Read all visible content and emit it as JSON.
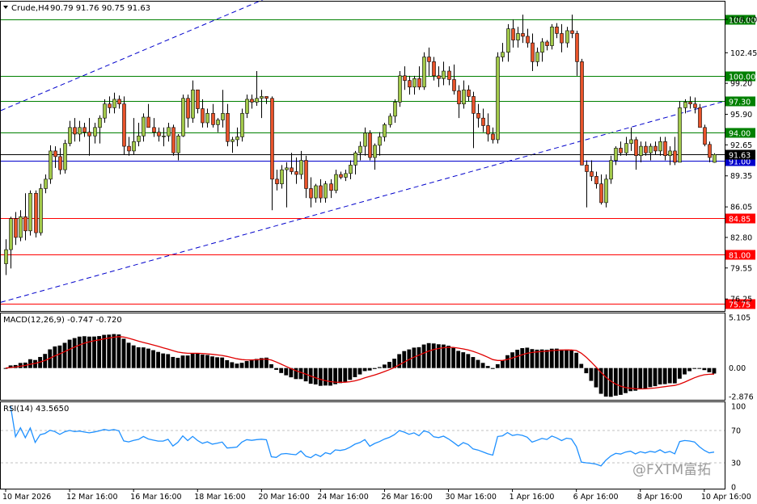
{
  "header": {
    "symbol_label": "Crude,H4",
    "ohlc_label": "90.79 91.76 90.75 91.63"
  },
  "macd_label": "MACD(12,26,9) -0.747 -0.720",
  "rsi_label": "RSI(14) 43.5650",
  "watermark": "@FXTM富拓",
  "chart_data": [
    {
      "type": "candlestick",
      "title": "Crude,H4",
      "ohlc_last": {
        "open": 90.79,
        "high": 91.76,
        "low": 90.75,
        "close": 91.63
      },
      "ylim": [
        75.75,
        108.0
      ],
      "y_tick_labels": [
        "106.00",
        "102.45",
        "99.20",
        "95.90",
        "92.65",
        "89.35",
        "86.05",
        "82.80",
        "79.55",
        "76.25"
      ],
      "x_tick_labels": [
        "10 Mar 2026",
        "12 Mar 16:00",
        "16 Mar 16:00",
        "18 Mar 16:00",
        "20 Mar 16:00",
        "24 Mar 16:00",
        "26 Mar 16:00",
        "30 Mar 16:00",
        "1 Apr 16:00",
        "6 Apr 16:00",
        "8 Apr 16:00",
        "10 Apr 16:00"
      ],
      "horizontal_levels": [
        {
          "value": 106.0,
          "label": "106.00",
          "color": "#008000"
        },
        {
          "value": 100.0,
          "label": "100.00",
          "color": "#008000"
        },
        {
          "value": 97.3,
          "label": "97.30",
          "color": "#008000"
        },
        {
          "value": 94.0,
          "label": "94.00",
          "color": "#008000"
        },
        {
          "value": 91.0,
          "label": "91.00",
          "color": "#0000cc"
        },
        {
          "value": 84.85,
          "label": "84.85",
          "color": "#ff0000"
        },
        {
          "value": 81.0,
          "label": "81.00",
          "color": "#ff0000"
        },
        {
          "value": 75.75,
          "label": "75.75",
          "color": "#ff0000"
        }
      ],
      "last_price_label": "91.63",
      "trend_channel": {
        "upper": [
          [
            "10 Mar 2026",
            96.3
          ],
          [
            "17 Mar 06:00",
            113.0
          ]
        ],
        "lower": [
          [
            "10 Mar 2026",
            75.9
          ],
          [
            "10 Apr 23:00",
            97.3
          ]
        ],
        "style": "dashed",
        "color": "#0000cc"
      },
      "candles": [
        [
          80,
          82.6,
          78.8,
          81.5
        ],
        [
          81.5,
          85,
          79.5,
          84.8
        ],
        [
          84.8,
          85.5,
          82,
          82.8
        ],
        [
          82.8,
          85.7,
          82.4,
          85
        ],
        [
          85,
          87.5,
          82.5,
          83.5
        ],
        [
          83.5,
          87.8,
          83,
          87.5
        ],
        [
          87.5,
          87.8,
          82.8,
          83.3
        ],
        [
          83.3,
          88.5,
          83,
          88
        ],
        [
          88,
          89.5,
          87.5,
          89
        ],
        [
          89,
          92.6,
          88.5,
          92
        ],
        [
          92,
          92.5,
          90.2,
          91.4
        ],
        [
          91.4,
          92.3,
          89.5,
          90
        ],
        [
          90,
          93.2,
          89.6,
          92.8
        ],
        [
          92.8,
          95.2,
          92.5,
          94.5
        ],
        [
          94.5,
          95.5,
          93,
          93.8
        ],
        [
          93.8,
          95.2,
          93,
          94.5
        ],
        [
          94.5,
          95,
          93.5,
          94
        ],
        [
          94,
          95.5,
          91.5,
          93.6
        ],
        [
          93.6,
          95,
          92.8,
          94.5
        ],
        [
          94.5,
          95.8,
          92.8,
          95.5
        ],
        [
          95.5,
          97.5,
          95,
          97
        ],
        [
          97,
          97.8,
          96,
          96.6
        ],
        [
          96.6,
          98.2,
          96,
          97.5
        ],
        [
          97.5,
          97.9,
          96.5,
          97
        ],
        [
          97,
          97.8,
          91.6,
          92.5
        ],
        [
          92.5,
          93.5,
          91.5,
          92
        ],
        [
          92,
          95.5,
          91.6,
          93
        ],
        [
          93,
          95,
          92.5,
          93.6
        ],
        [
          93.6,
          96,
          93,
          95.6
        ],
        [
          95.6,
          97,
          94.5,
          94.5
        ],
        [
          94.5,
          95.5,
          93.5,
          94
        ],
        [
          94,
          94.5,
          93,
          93.6
        ],
        [
          93.6,
          94.5,
          92.5,
          93.6
        ],
        [
          93.6,
          95,
          93,
          94.5
        ],
        [
          94.5,
          94.8,
          91.5,
          91.8
        ],
        [
          91.8,
          93.8,
          91,
          93.6
        ],
        [
          93.6,
          98,
          93.5,
          97.6
        ],
        [
          97.6,
          98,
          94.5,
          95.5
        ],
        [
          95.5,
          99.5,
          95,
          98.5
        ],
        [
          98.5,
          98.5,
          96,
          96.5
        ],
        [
          96.5,
          97.5,
          94.5,
          95
        ],
        [
          95,
          96.5,
          94.5,
          96
        ],
        [
          96,
          97,
          94.5,
          94.8
        ],
        [
          94.8,
          95.5,
          94,
          95.3
        ],
        [
          95.3,
          98.5,
          94.5,
          96
        ],
        [
          96,
          97,
          92.5,
          93
        ],
        [
          93,
          93.5,
          91.8,
          93.2
        ],
        [
          93.2,
          94.5,
          92.5,
          93.5
        ],
        [
          93.5,
          96.5,
          93,
          96
        ],
        [
          96,
          98,
          95.5,
          97.5
        ],
        [
          97.5,
          98,
          96.5,
          97.2
        ],
        [
          97.2,
          100.5,
          96.8,
          97.6
        ],
        [
          97.6,
          98.5,
          95.5,
          97.8
        ],
        [
          97.8,
          97.8,
          97,
          97.6
        ],
        [
          97.6,
          97.8,
          85.7,
          89
        ],
        [
          89,
          90,
          87.8,
          88.5
        ],
        [
          88.5,
          90.5,
          88,
          90
        ],
        [
          90,
          90.8,
          86,
          90.2
        ],
        [
          90.2,
          91.8,
          89.5,
          89.8
        ],
        [
          89.8,
          91.3,
          88.5,
          89.5
        ],
        [
          89.5,
          92,
          89,
          91
        ],
        [
          91,
          91.5,
          87,
          88
        ],
        [
          88,
          89.2,
          86,
          87
        ],
        [
          87,
          88.5,
          86.5,
          88.3
        ],
        [
          88.3,
          89,
          86.5,
          87
        ],
        [
          87,
          88.8,
          86.5,
          88.5
        ],
        [
          88.5,
          89,
          87,
          87.8
        ],
        [
          87.8,
          90,
          87.5,
          89.5
        ],
        [
          89.5,
          89.8,
          89,
          89.2
        ],
        [
          89.2,
          90,
          88.8,
          89.6
        ],
        [
          89.6,
          91,
          89,
          90.5
        ],
        [
          90.5,
          92,
          89.5,
          91.8
        ],
        [
          91.8,
          93,
          91,
          92.5
        ],
        [
          92.5,
          94.5,
          91.5,
          93.9
        ],
        [
          93.9,
          94.2,
          91,
          91.3
        ],
        [
          91.3,
          92.8,
          90,
          92.6
        ],
        [
          92.6,
          94,
          91.5,
          93.5
        ],
        [
          93.5,
          95,
          93,
          94.8
        ],
        [
          94.8,
          96,
          94.5,
          95.7
        ],
        [
          95.7,
          97.5,
          95,
          97.2
        ],
        [
          97.2,
          100.5,
          96.7,
          100
        ],
        [
          100,
          101,
          98.5,
          99.5
        ],
        [
          99.5,
          100,
          98,
          98.8
        ],
        [
          98.8,
          100,
          98,
          99.7
        ],
        [
          99.7,
          101,
          98.5,
          98.8
        ],
        [
          98.8,
          102.5,
          98.5,
          102
        ],
        [
          102,
          103,
          100,
          101.5
        ],
        [
          101.5,
          102,
          99.5,
          100
        ],
        [
          100,
          101,
          98.8,
          99.7
        ],
        [
          99.7,
          101.5,
          99,
          100.5
        ],
        [
          100.5,
          101,
          99,
          99.6
        ],
        [
          99.6,
          101.2,
          98,
          98.4
        ],
        [
          98.4,
          99,
          95.5,
          97
        ],
        [
          97,
          99.5,
          96.5,
          98.5
        ],
        [
          98.5,
          99,
          97.3,
          97.8
        ],
        [
          97.8,
          98.3,
          92.3,
          96
        ],
        [
          96,
          97,
          94.5,
          95.5
        ],
        [
          95.5,
          96.5,
          94,
          94.7
        ],
        [
          94.7,
          96,
          93,
          93.8
        ],
        [
          93.8,
          94.5,
          92.8,
          93.2
        ],
        [
          93.2,
          102.5,
          92.8,
          102
        ],
        [
          102,
          103.5,
          101.5,
          102.5
        ],
        [
          102.5,
          105.5,
          101.5,
          105
        ],
        [
          105,
          106,
          103,
          103.8
        ],
        [
          103.8,
          105.2,
          103,
          104.5
        ],
        [
          104.5,
          106.5,
          103.5,
          104.2
        ],
        [
          104.2,
          105,
          103,
          103.5
        ],
        [
          103.5,
          104.5,
          100.5,
          101.5
        ],
        [
          101.5,
          103,
          101,
          102.5
        ],
        [
          102.5,
          104,
          101.5,
          103.6
        ],
        [
          103.6,
          103.8,
          102.7,
          103.2
        ],
        [
          103.2,
          105.5,
          102.8,
          105.2
        ],
        [
          105.2,
          105.6,
          104,
          104.5
        ],
        [
          104.5,
          105.5,
          102.5,
          103.5
        ],
        [
          103.5,
          105.2,
          103,
          104.8
        ],
        [
          104.8,
          106.5,
          104,
          104.5
        ],
        [
          104.5,
          104.8,
          100,
          101.5
        ],
        [
          101.5,
          101.8,
          90.5,
          90.5
        ],
        [
          90.5,
          91,
          86,
          89.8
        ],
        [
          89.8,
          91,
          88.8,
          89.3
        ],
        [
          89.3,
          89.8,
          88,
          88.5
        ],
        [
          88.5,
          89.5,
          86.3,
          86.5
        ],
        [
          86.5,
          89.5,
          86,
          89
        ],
        [
          89,
          91.5,
          88.5,
          91
        ],
        [
          91,
          92.5,
          90.5,
          92.3
        ],
        [
          92.3,
          93,
          91.5,
          91.8
        ],
        [
          91.8,
          93.5,
          91.5,
          92.8
        ],
        [
          92.8,
          94.5,
          92,
          93.2
        ],
        [
          93.2,
          93.5,
          90,
          91.5
        ],
        [
          91.5,
          93,
          90.8,
          92.5
        ],
        [
          92.5,
          93,
          91.5,
          91.8
        ],
        [
          91.8,
          92.8,
          91,
          92.5
        ],
        [
          92.5,
          93,
          91.6,
          92
        ],
        [
          92,
          93.5,
          91.5,
          93
        ],
        [
          93,
          93.5,
          91,
          91.5
        ],
        [
          91.5,
          92.5,
          90.5,
          92
        ],
        [
          92,
          93.5,
          90.5,
          90.8
        ],
        [
          90.8,
          97.3,
          90.8,
          96.6
        ],
        [
          96.6,
          97.5,
          96,
          97.2
        ],
        [
          97.2,
          97.8,
          96.5,
          97
        ],
        [
          97,
          97.7,
          96,
          96.6
        ],
        [
          96.6,
          97,
          94.6,
          94.5
        ],
        [
          94.5,
          94.8,
          92.5,
          92.7
        ],
        [
          92.7,
          93,
          90.8,
          91.3
        ],
        [
          90.79,
          91.76,
          90.75,
          91.63
        ]
      ]
    },
    {
      "type": "bar",
      "title": "MACD(12,26,9)",
      "macd": -0.747,
      "signal": -0.72,
      "ylim": [
        -2.876,
        5.105
      ],
      "y_tick_labels": [
        "5.105",
        "0.00",
        "-2.876"
      ]
    },
    {
      "type": "line",
      "title": "RSI(14)",
      "last": 43.565,
      "ylim": [
        0,
        100
      ],
      "y_tick_labels": [
        "100",
        "70",
        "30",
        "0"
      ],
      "levels": [
        70,
        30
      ],
      "color": "#1e90ff"
    }
  ]
}
